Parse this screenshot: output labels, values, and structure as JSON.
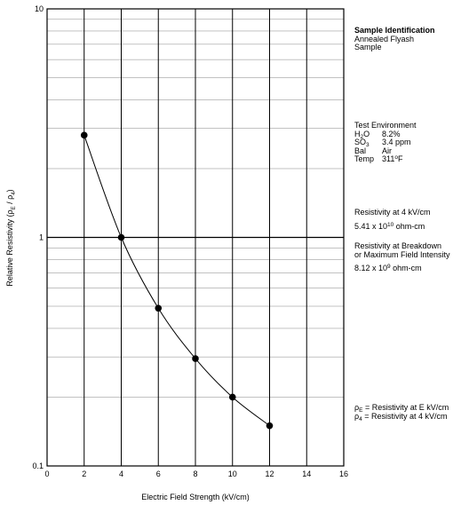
{
  "chart_data": {
    "type": "line",
    "xlabel": "Electric Field Strength (kV/cm)",
    "ylabel": {
      "main": "Relative Resistivity (",
      "rho1": "ρ",
      "sub1": "E",
      "sep": " / ",
      "rho2": "ρ",
      "sub2": "4",
      "close": ")"
    },
    "x_ticks": [
      0,
      2,
      4,
      6,
      8,
      10,
      12,
      14,
      16
    ],
    "y_tick_labels": [
      "10",
      "1",
      "0.1"
    ],
    "y_scale": "log",
    "xlim": [
      0,
      16
    ],
    "ylim": [
      0.1,
      10
    ],
    "grid": true,
    "x": [
      2,
      4,
      6,
      8,
      10,
      12
    ],
    "y": [
      2.8,
      1.0,
      0.49,
      0.295,
      0.2,
      0.15
    ]
  },
  "sidebar": {
    "sample": {
      "heading": "Sample Identification",
      "line1": "Annealed Flyash",
      "line2": "Sample"
    },
    "environment": {
      "heading": "Test Environment",
      "h2o_label_a": "H",
      "h2o_label_sub": "2",
      "h2o_label_b": "O",
      "h2o_value": "8.2%",
      "so3_label_a": "SO",
      "so3_label_sub": "3",
      "so3_value": "3.4 ppm",
      "bal_label": "Bal",
      "bal_value": "Air",
      "temp_label": "Temp",
      "temp_value_a": "311",
      "temp_value_sup": "o",
      "temp_value_b": "F"
    },
    "res4": {
      "heading": "Resistivity at 4 kV/cm",
      "value_a": "5.41 x 10",
      "value_sup": "10",
      "value_b": " ohm-cm"
    },
    "resbd": {
      "heading1": "Resistivity at Breakdown",
      "heading2": "or Maximum Field Intensity",
      "value_a": "8.12 x 10",
      "value_sup": "9",
      "value_b": " ohm-cm"
    },
    "legend": {
      "rho_e": "ρ",
      "rho_e_sub": "E",
      "rho_e_text": " = Resistivity at E kV/cm",
      "rho_4": "ρ",
      "rho_4_sub": "4",
      "rho_4_text": " = Resistivity at 4 kV/cm"
    }
  }
}
